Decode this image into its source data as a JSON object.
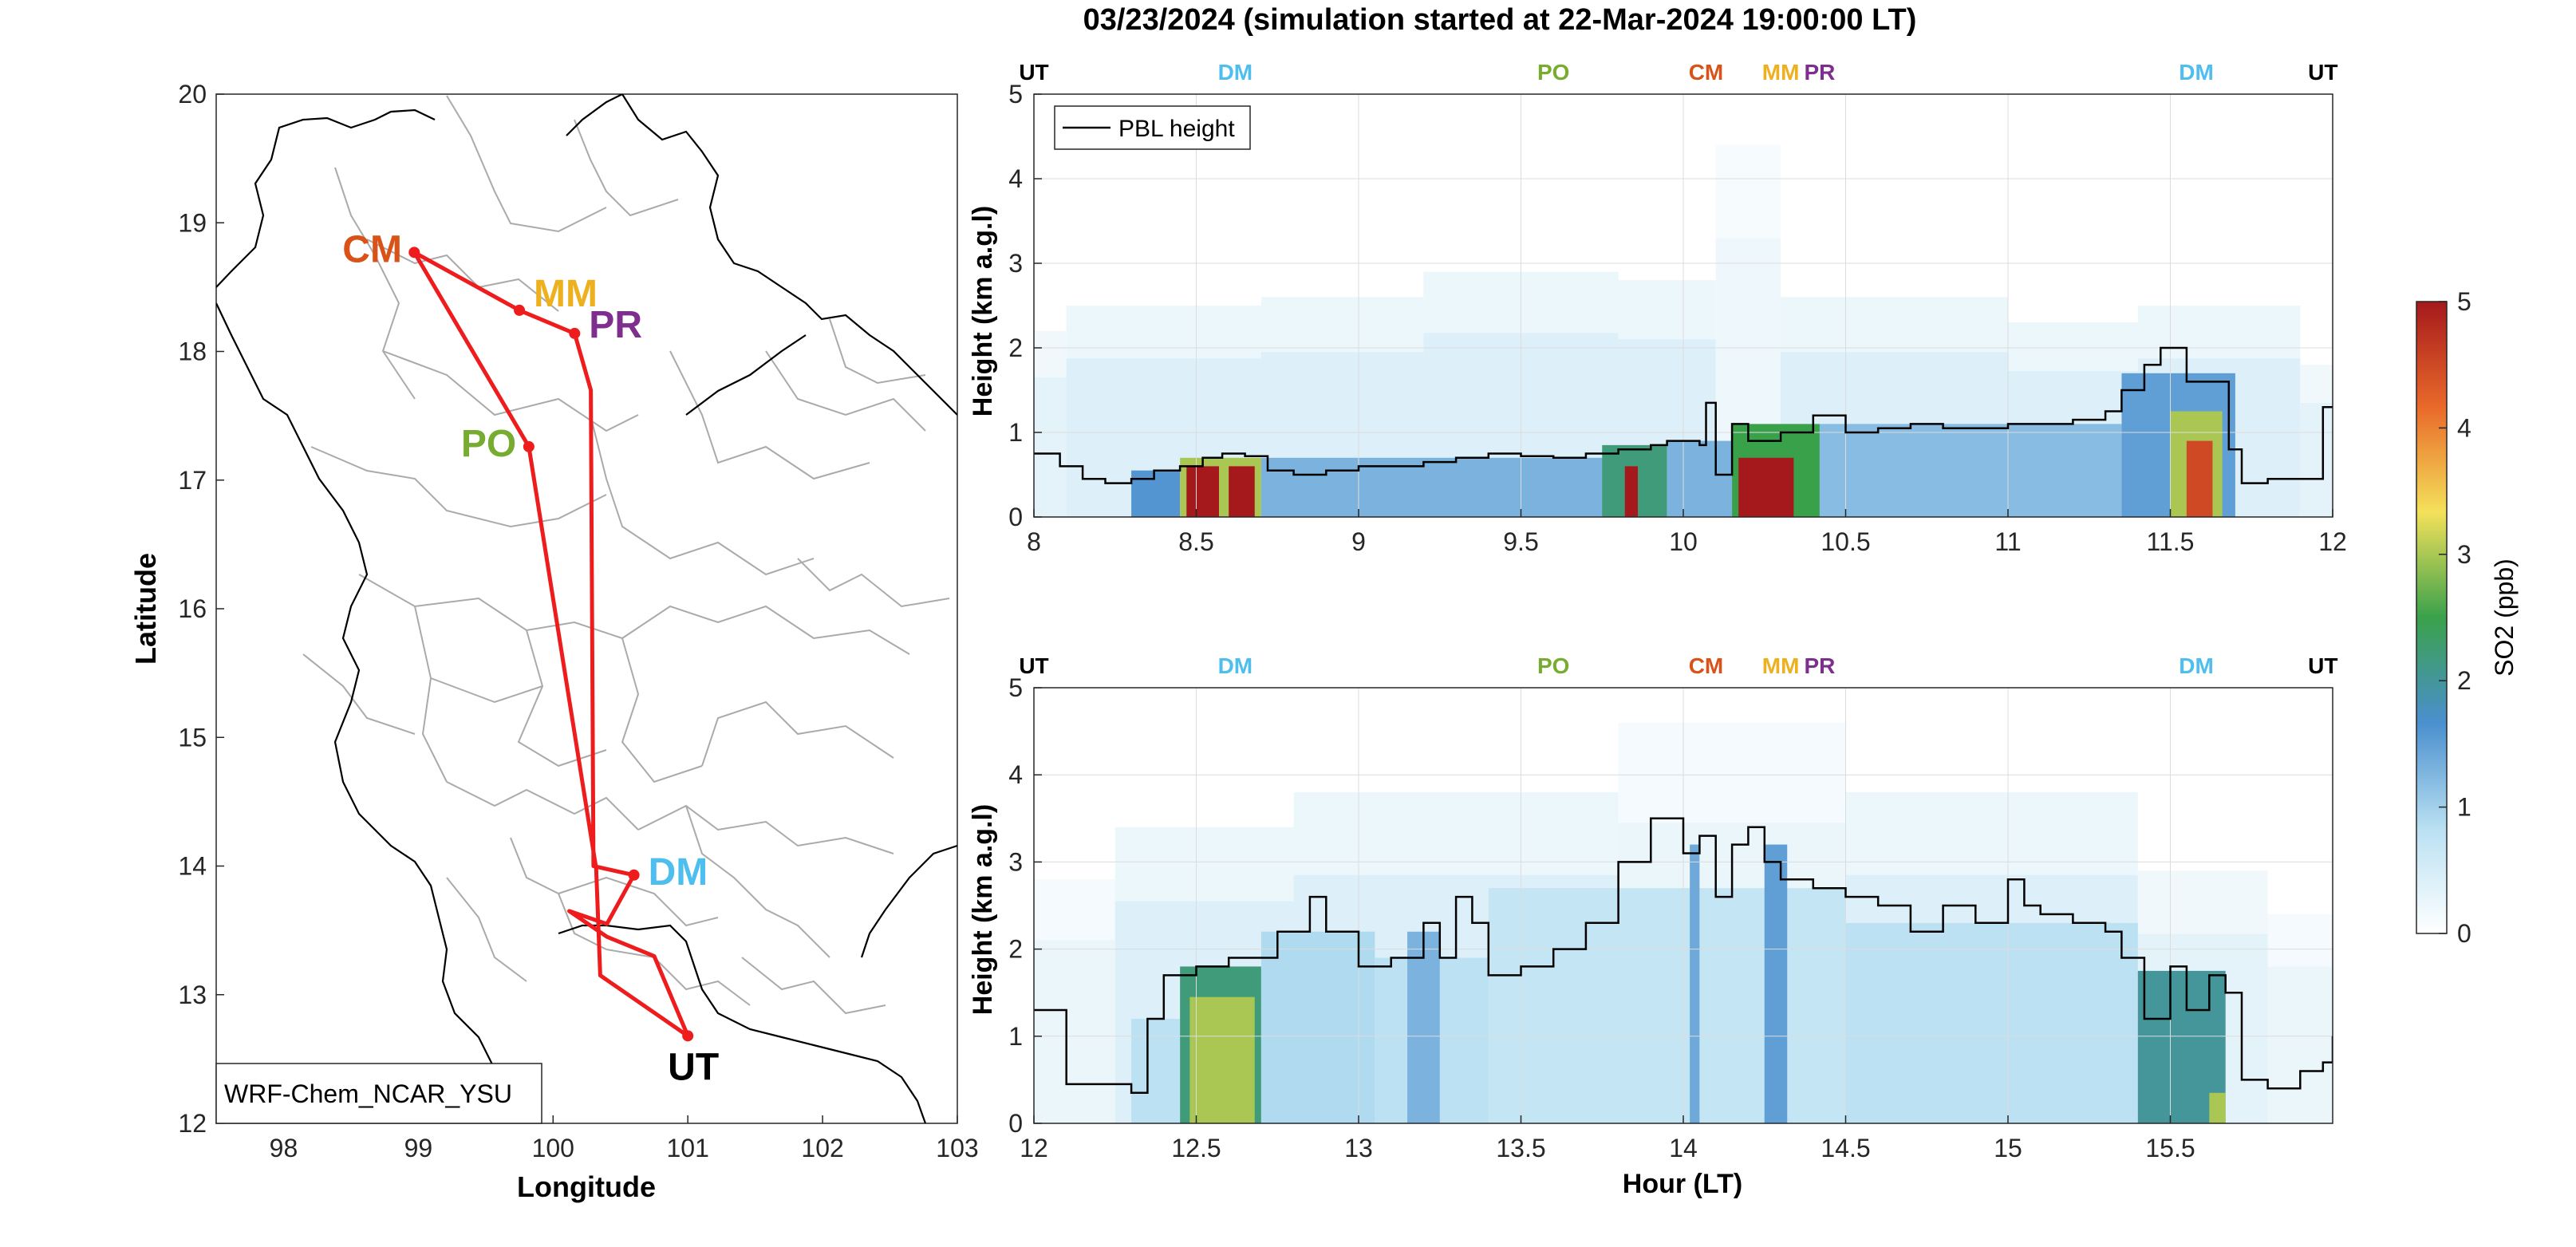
{
  "title": "03/23/2024 (simulation started at 22-Mar-2024 19:00:00 LT)",
  "colors": {
    "route": "#ee1c1c",
    "CM": "#d95319",
    "MM": "#edb120",
    "PR": "#7e2f8e",
    "PO": "#77ac30",
    "DM": "#4dbeee",
    "UT": "#000000",
    "axis": "#262626",
    "grid": "#dcdcdc",
    "border": "#aaaaaa"
  },
  "colormap": [
    "#ffffff",
    "#b9e0f2",
    "#4a8fce",
    "#3aa14b",
    "#f4e15a",
    "#e9692a",
    "#a5191c"
  ],
  "colorbar": {
    "label": "SO2 (ppb)",
    "ticks": [
      0,
      1,
      2,
      3,
      4,
      5
    ]
  },
  "chart_data": [
    {
      "type": "map",
      "name": "route-map",
      "model_label": "WRF-Chem_NCAR_YSU",
      "xlabel": "Longitude",
      "ylabel": "Latitude",
      "xlim": [
        97.5,
        103
      ],
      "ylim": [
        12,
        20
      ],
      "xticks": [
        98,
        99,
        100,
        101,
        102,
        103
      ],
      "yticks": [
        12,
        13,
        14,
        15,
        16,
        17,
        18,
        19,
        20
      ],
      "sites": [
        {
          "id": "CM",
          "label": "CM",
          "lon": 98.97,
          "lat": 18.77
        },
        {
          "id": "MM",
          "label": "MM",
          "lon": 99.75,
          "lat": 18.32
        },
        {
          "id": "PR",
          "label": "PR",
          "lon": 100.16,
          "lat": 18.14
        },
        {
          "id": "PO",
          "label": "PO",
          "lon": 99.82,
          "lat": 17.26
        },
        {
          "id": "DM",
          "label": "DM",
          "lon": 100.6,
          "lat": 13.93
        },
        {
          "id": "UT",
          "label": "UT",
          "lon": 101.0,
          "lat": 12.68
        }
      ],
      "route": [
        [
          101.0,
          12.68
        ],
        [
          100.35,
          13.15
        ],
        [
          100.32,
          13.98
        ],
        [
          99.82,
          17.26
        ],
        [
          98.97,
          18.77
        ],
        [
          99.75,
          18.32
        ],
        [
          100.16,
          18.14
        ],
        [
          100.28,
          17.7
        ],
        [
          100.3,
          14.0
        ],
        [
          100.6,
          13.93
        ],
        [
          100.4,
          13.55
        ],
        [
          100.12,
          13.65
        ],
        [
          100.4,
          13.45
        ],
        [
          100.75,
          13.3
        ],
        [
          101.0,
          12.68
        ]
      ]
    },
    {
      "type": "heatmap",
      "name": "curtain-top",
      "xlabel": "",
      "ylabel": "Height (km a.g.l)",
      "xlim": [
        8,
        12
      ],
      "ylim": [
        0,
        5
      ],
      "xticks": [
        8,
        8.5,
        9,
        9.5,
        10,
        10.5,
        11,
        11.5,
        12
      ],
      "xtick_labels": [
        "8",
        "8.5",
        "9",
        "9.5",
        "10",
        "10.5",
        "11",
        "11.5",
        "12"
      ],
      "yticks": [
        0,
        1,
        2,
        3,
        4,
        5
      ],
      "legend": {
        "entries": [
          "PBL height"
        ],
        "position": "top-left"
      },
      "site_markers": [
        {
          "label": "UT",
          "x": 8.0
        },
        {
          "label": "DM",
          "x": 8.62
        },
        {
          "label": "PO",
          "x": 9.6
        },
        {
          "label": "CM",
          "x": 10.07
        },
        {
          "label": "MM",
          "x": 10.3
        },
        {
          "label": "PR",
          "x": 10.42
        },
        {
          "label": "DM",
          "x": 11.58
        },
        {
          "label": "UT",
          "x": 11.97
        }
      ],
      "pbl_height": {
        "x": [
          8.0,
          8.08,
          8.15,
          8.22,
          8.3,
          8.37,
          8.45,
          8.52,
          8.58,
          8.65,
          8.72,
          8.8,
          8.9,
          9.0,
          9.1,
          9.2,
          9.3,
          9.4,
          9.5,
          9.6,
          9.7,
          9.8,
          9.9,
          9.95,
          10.05,
          10.07,
          10.1,
          10.15,
          10.2,
          10.3,
          10.4,
          10.5,
          10.6,
          10.7,
          10.8,
          10.9,
          11.0,
          11.1,
          11.2,
          11.3,
          11.35,
          11.42,
          11.47,
          11.55,
          11.62,
          11.68,
          11.72,
          11.8,
          11.9,
          11.97,
          12.0
        ],
        "y": [
          0.75,
          0.6,
          0.45,
          0.4,
          0.45,
          0.55,
          0.6,
          0.7,
          0.75,
          0.72,
          0.55,
          0.5,
          0.55,
          0.6,
          0.6,
          0.65,
          0.7,
          0.75,
          0.72,
          0.7,
          0.75,
          0.8,
          0.85,
          0.9,
          0.85,
          1.35,
          0.5,
          1.1,
          0.9,
          1.0,
          1.2,
          1.0,
          1.05,
          1.1,
          1.05,
          1.05,
          1.1,
          1.1,
          1.15,
          1.25,
          1.5,
          1.8,
          2.0,
          1.6,
          1.6,
          0.8,
          0.4,
          0.45,
          0.45,
          1.3,
          1.3
        ]
      },
      "so2": {
        "background": [
          {
            "x0": 8.0,
            "x1": 8.1,
            "top": 2.2,
            "v": 0.4
          },
          {
            "x0": 8.1,
            "x1": 8.7,
            "top": 2.5,
            "v": 0.5
          },
          {
            "x0": 8.7,
            "x1": 9.2,
            "top": 2.6,
            "v": 0.5
          },
          {
            "x0": 9.2,
            "x1": 9.8,
            "top": 2.9,
            "v": 0.5
          },
          {
            "x0": 9.8,
            "x1": 10.1,
            "top": 2.8,
            "v": 0.5
          },
          {
            "x0": 10.1,
            "x1": 10.3,
            "top": 4.4,
            "v": 0.25
          },
          {
            "x0": 10.3,
            "x1": 11.0,
            "top": 2.6,
            "v": 0.5
          },
          {
            "x0": 11.0,
            "x1": 11.4,
            "top": 2.3,
            "v": 0.5
          },
          {
            "x0": 11.4,
            "x1": 11.9,
            "top": 2.5,
            "v": 0.5
          },
          {
            "x0": 11.9,
            "x1": 12.0,
            "top": 1.8,
            "v": 0.4
          }
        ],
        "plumes": [
          {
            "x0": 8.3,
            "x1": 8.45,
            "top": 0.55,
            "v": 1.6
          },
          {
            "x0": 8.45,
            "x1": 8.7,
            "top": 0.7,
            "v": 3.0
          },
          {
            "x0": 8.47,
            "x1": 8.57,
            "top": 0.6,
            "v": 5.0
          },
          {
            "x0": 8.6,
            "x1": 8.68,
            "top": 0.6,
            "v": 5.0
          },
          {
            "x0": 8.7,
            "x1": 9.8,
            "top": 0.7,
            "v": 1.3
          },
          {
            "x0": 9.75,
            "x1": 9.95,
            "top": 0.85,
            "v": 2.2
          },
          {
            "x0": 9.82,
            "x1": 9.86,
            "top": 0.6,
            "v": 5.0
          },
          {
            "x0": 9.95,
            "x1": 10.15,
            "top": 0.9,
            "v": 1.3
          },
          {
            "x0": 10.15,
            "x1": 10.42,
            "top": 1.1,
            "v": 2.5
          },
          {
            "x0": 10.17,
            "x1": 10.34,
            "top": 0.7,
            "v": 5.0
          },
          {
            "x0": 10.42,
            "x1": 11.35,
            "top": 1.1,
            "v": 1.2
          },
          {
            "x0": 11.35,
            "x1": 11.7,
            "top": 1.7,
            "v": 1.5
          },
          {
            "x0": 11.5,
            "x1": 11.66,
            "top": 1.25,
            "v": 3.0
          },
          {
            "x0": 11.55,
            "x1": 11.63,
            "top": 0.9,
            "v": 4.5
          }
        ]
      }
    },
    {
      "type": "heatmap",
      "name": "curtain-bottom",
      "xlabel": "Hour (LT)",
      "ylabel": "Height (km a.g.l)",
      "xlim": [
        12,
        16
      ],
      "ylim": [
        0,
        5
      ],
      "xticks": [
        12,
        12.5,
        13,
        13.5,
        14,
        14.5,
        15,
        15.5
      ],
      "xtick_labels": [
        "12",
        "12.5",
        "13",
        "13.5",
        "14",
        "14.5",
        "15",
        "15.5"
      ],
      "yticks": [
        0,
        1,
        2,
        3,
        4,
        5
      ],
      "site_markers": [
        {
          "label": "UT",
          "x": 12.0
        },
        {
          "label": "DM",
          "x": 12.62
        },
        {
          "label": "PO",
          "x": 13.6
        },
        {
          "label": "CM",
          "x": 14.07
        },
        {
          "label": "MM",
          "x": 14.3
        },
        {
          "label": "PR",
          "x": 14.42
        },
        {
          "label": "DM",
          "x": 15.58
        },
        {
          "label": "UT",
          "x": 15.97
        }
      ],
      "pbl_height": {
        "x": [
          12.0,
          12.07,
          12.1,
          12.2,
          12.3,
          12.35,
          12.4,
          12.5,
          12.6,
          12.7,
          12.75,
          12.85,
          12.9,
          13.0,
          13.1,
          13.2,
          13.25,
          13.3,
          13.35,
          13.4,
          13.5,
          13.6,
          13.7,
          13.8,
          13.9,
          14.0,
          14.05,
          14.1,
          14.15,
          14.2,
          14.25,
          14.3,
          14.4,
          14.5,
          14.6,
          14.7,
          14.8,
          14.9,
          15.0,
          15.05,
          15.1,
          15.2,
          15.3,
          15.35,
          15.42,
          15.5,
          15.55,
          15.62,
          15.67,
          15.72,
          15.8,
          15.9,
          15.97,
          16.0
        ],
        "y": [
          1.3,
          1.3,
          0.45,
          0.45,
          0.35,
          1.2,
          1.7,
          1.8,
          1.9,
          1.9,
          2.2,
          2.6,
          2.2,
          1.8,
          1.9,
          2.3,
          1.9,
          2.6,
          2.3,
          1.7,
          1.8,
          2.0,
          2.3,
          3.0,
          3.5,
          3.1,
          3.3,
          2.6,
          3.2,
          3.4,
          3.0,
          2.8,
          2.7,
          2.6,
          2.5,
          2.2,
          2.5,
          2.3,
          2.8,
          2.5,
          2.4,
          2.3,
          2.2,
          1.9,
          1.2,
          1.8,
          1.3,
          1.7,
          1.5,
          0.5,
          0.4,
          0.6,
          0.7,
          1.0
        ]
      },
      "so2": {
        "background": [
          {
            "x0": 12.0,
            "x1": 12.25,
            "top": 2.8,
            "v": 0.3
          },
          {
            "x0": 12.25,
            "x1": 12.8,
            "top": 3.4,
            "v": 0.5
          },
          {
            "x0": 12.8,
            "x1": 13.8,
            "top": 3.8,
            "v": 0.5
          },
          {
            "x0": 13.8,
            "x1": 14.5,
            "top": 4.6,
            "v": 0.3
          },
          {
            "x0": 14.5,
            "x1": 15.4,
            "top": 3.8,
            "v": 0.5
          },
          {
            "x0": 15.4,
            "x1": 15.8,
            "top": 2.9,
            "v": 0.4
          },
          {
            "x0": 15.8,
            "x1": 16.0,
            "top": 2.4,
            "v": 0.3
          }
        ],
        "plumes": [
          {
            "x0": 12.3,
            "x1": 12.45,
            "top": 1.2,
            "v": 0.8
          },
          {
            "x0": 12.45,
            "x1": 12.7,
            "top": 1.8,
            "v": 2.2
          },
          {
            "x0": 12.48,
            "x1": 12.68,
            "top": 1.45,
            "v": 3.0
          },
          {
            "x0": 12.7,
            "x1": 13.05,
            "top": 2.2,
            "v": 0.9
          },
          {
            "x0": 13.05,
            "x1": 13.4,
            "top": 1.9,
            "v": 0.8
          },
          {
            "x0": 13.15,
            "x1": 13.25,
            "top": 2.2,
            "v": 1.3
          },
          {
            "x0": 13.4,
            "x1": 14.5,
            "top": 2.7,
            "v": 0.7
          },
          {
            "x0": 14.02,
            "x1": 14.05,
            "top": 3.2,
            "v": 1.4
          },
          {
            "x0": 14.25,
            "x1": 14.32,
            "top": 3.2,
            "v": 1.5
          },
          {
            "x0": 14.5,
            "x1": 15.4,
            "top": 2.3,
            "v": 0.8
          },
          {
            "x0": 15.4,
            "x1": 15.67,
            "top": 1.75,
            "v": 2.0
          },
          {
            "x0": 15.62,
            "x1": 15.67,
            "top": 0.35,
            "v": 3.0
          }
        ]
      }
    }
  ]
}
